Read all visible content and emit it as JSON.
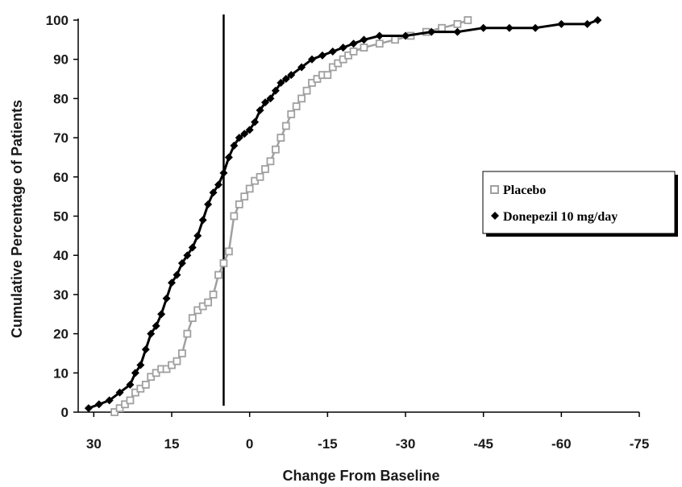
{
  "chart_data": {
    "type": "line",
    "title": "",
    "xlabel": "Change From Baseline",
    "ylabel": "Cumulative Percentage of Patients",
    "xlim": [
      33,
      -75
    ],
    "ylim": [
      0,
      100
    ],
    "x_ticks": [
      30,
      15,
      0,
      -15,
      -30,
      -45,
      -60,
      -75
    ],
    "x_tick_labels": [
      "30",
      "15",
      "0",
      "-15",
      "-30",
      "-45",
      "-60",
      "-75"
    ],
    "y_ticks": [
      0,
      10,
      20,
      30,
      40,
      50,
      60,
      70,
      80,
      90,
      100
    ],
    "y_tick_labels": [
      "0",
      "10",
      "20",
      "30",
      "40",
      "50",
      "60",
      "70",
      "80",
      "90",
      "100"
    ],
    "reference_line_x": 5,
    "grid": false,
    "legend_position": "right",
    "series": [
      {
        "name": "Placebo",
        "color": "#a0a0a0",
        "marker": "open-square",
        "x": [
          26,
          25,
          24,
          23,
          22,
          21,
          20,
          19,
          18,
          17,
          16,
          15,
          14,
          13,
          12,
          11,
          10,
          9,
          8,
          7,
          6,
          5,
          4,
          3,
          2,
          1,
          0,
          -1,
          -2,
          -3,
          -4,
          -5,
          -6,
          -7,
          -8,
          -9,
          -10,
          -11,
          -12,
          -13,
          -14,
          -15,
          -16,
          -17,
          -18,
          -19,
          -20,
          -22,
          -25,
          -28,
          -31,
          -34,
          -37,
          -40,
          -42
        ],
        "y": [
          0,
          1,
          2,
          3,
          5,
          6,
          7,
          9,
          10,
          11,
          11,
          12,
          13,
          15,
          20,
          24,
          26,
          27,
          28,
          30,
          35,
          38,
          41,
          50,
          53,
          55,
          57,
          59,
          60,
          62,
          64,
          67,
          70,
          73,
          76,
          78,
          80,
          82,
          84,
          85,
          86,
          86,
          88,
          89,
          90,
          91,
          92,
          93,
          94,
          95,
          96,
          97,
          98,
          99,
          100
        ]
      },
      {
        "name": "Donepezil 10 mg/day",
        "color": "#000000",
        "marker": "filled-diamond",
        "x": [
          31,
          29,
          27,
          25,
          23,
          22,
          21,
          20,
          19,
          18,
          17,
          16,
          15,
          14,
          13,
          12,
          11,
          10,
          9,
          8,
          7,
          6,
          5,
          4,
          3,
          2,
          1,
          0,
          -1,
          -2,
          -3,
          -4,
          -5,
          -6,
          -7,
          -8,
          -10,
          -12,
          -14,
          -16,
          -18,
          -20,
          -22,
          -25,
          -30,
          -35,
          -40,
          -45,
          -50,
          -55,
          -60,
          -65,
          -67
        ],
        "y": [
          1,
          2,
          3,
          5,
          7,
          10,
          12,
          16,
          20,
          22,
          25,
          29,
          33,
          35,
          38,
          40,
          42,
          45,
          49,
          53,
          56,
          58,
          61,
          65,
          68,
          70,
          71,
          72,
          74,
          77,
          79,
          80,
          82,
          84,
          85,
          86,
          88,
          90,
          91,
          92,
          93,
          94,
          95,
          96,
          96,
          97,
          97,
          98,
          98,
          98,
          99,
          99,
          100
        ]
      }
    ]
  }
}
